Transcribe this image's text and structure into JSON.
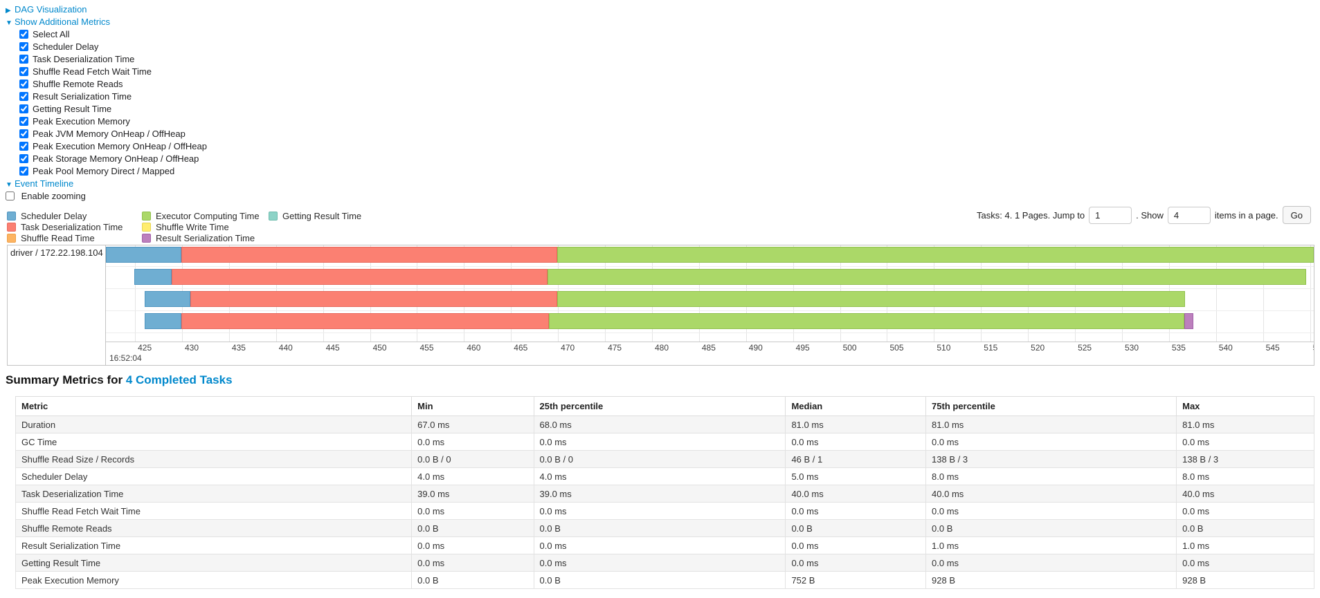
{
  "theme": {
    "link_color": "#0088cc"
  },
  "toggles": {
    "dag": {
      "label": "DAG Visualization",
      "arrow": "▶"
    },
    "metrics": {
      "label": "Show Additional Metrics",
      "arrow": "▼"
    },
    "metric_checkboxes": [
      {
        "label": "Select All",
        "checked": true
      },
      {
        "label": "Scheduler Delay",
        "checked": true
      },
      {
        "label": "Task Deserialization Time",
        "checked": true
      },
      {
        "label": "Shuffle Read Fetch Wait Time",
        "checked": true
      },
      {
        "label": "Shuffle Remote Reads",
        "checked": true
      },
      {
        "label": "Result Serialization Time",
        "checked": true
      },
      {
        "label": "Getting Result Time",
        "checked": true
      },
      {
        "label": "Peak Execution Memory",
        "checked": true
      },
      {
        "label": "Peak JVM Memory OnHeap / OffHeap",
        "checked": true
      },
      {
        "label": "Peak Execution Memory OnHeap / OffHeap",
        "checked": true
      },
      {
        "label": "Peak Storage Memory OnHeap / OffHeap",
        "checked": true
      },
      {
        "label": "Peak Pool Memory Direct / Mapped",
        "checked": true
      }
    ],
    "event_timeline": {
      "label": "Event Timeline",
      "arrow": "▼"
    },
    "enable_zooming": {
      "label": "Enable zooming",
      "checked": false
    }
  },
  "legend": {
    "items": [
      {
        "key": "scheduler_delay",
        "label": "Scheduler Delay"
      },
      {
        "key": "task_deserialization",
        "label": "Task Deserialization Time"
      },
      {
        "key": "shuffle_read",
        "label": "Shuffle Read Time"
      },
      {
        "key": "executor_computing",
        "label": "Executor Computing Time"
      },
      {
        "key": "shuffle_write",
        "label": "Shuffle Write Time"
      },
      {
        "key": "result_serialization",
        "label": "Result Serialization Time"
      },
      {
        "key": "getting_result",
        "label": "Getting Result Time"
      }
    ]
  },
  "pagination": {
    "prefix": "Tasks: 4. 1 Pages. Jump to",
    "jump_value": "1",
    "mid": ". Show",
    "show_value": "4",
    "suffix": "items in a page.",
    "go_label": "Go"
  },
  "chart_data": {
    "type": "timeline",
    "group_label": "driver / 172.22.198.104",
    "axis": {
      "start": 421.9,
      "end": 550.4,
      "tick_start": 425,
      "tick_step": 5,
      "tick_end": 550,
      "major_label": "16:52:04",
      "unit": "ms within 16:52:04"
    },
    "colors": {
      "scheduler_delay": {
        "fill": "#6FAED2",
        "border": "#4E94C0"
      },
      "task_deserialization": {
        "fill": "#FB8072",
        "border": "#E8685C"
      },
      "shuffle_read": {
        "fill": "#FDB462",
        "border": "#ED9F47"
      },
      "executor_computing": {
        "fill": "#ABD868",
        "border": "#91C14E"
      },
      "shuffle_write": {
        "fill": "#FFED6F",
        "border": "#E6D452"
      },
      "result_serialization": {
        "fill": "#BC80BD",
        "border": "#A15FA8"
      },
      "getting_result": {
        "fill": "#8DD3C7",
        "border": "#6FBCAE"
      }
    },
    "tasks": [
      {
        "segments": [
          [
            "scheduler_delay",
            421.9,
            429.9
          ],
          [
            "task_deserialization",
            429.9,
            469.9
          ],
          [
            "executor_computing",
            469.9,
            550.4
          ]
        ]
      },
      {
        "segments": [
          [
            "scheduler_delay",
            424.9,
            428.9
          ],
          [
            "task_deserialization",
            428.9,
            468.9
          ],
          [
            "executor_computing",
            468.9,
            549.6
          ]
        ]
      },
      {
        "segments": [
          [
            "scheduler_delay",
            426.0,
            430.9
          ],
          [
            "task_deserialization",
            430.9,
            469.9
          ],
          [
            "executor_computing",
            469.9,
            536.7
          ]
        ]
      },
      {
        "segments": [
          [
            "scheduler_delay",
            426.0,
            429.9
          ],
          [
            "task_deserialization",
            429.9,
            469.0
          ],
          [
            "executor_computing",
            469.0,
            536.6
          ],
          [
            "result_serialization",
            536.6,
            537.6
          ]
        ]
      }
    ]
  },
  "summary": {
    "heading_prefix": "Summary Metrics for ",
    "heading_link": "4 Completed Tasks",
    "table": {
      "columns": [
        "Metric",
        "Min",
        "25th percentile",
        "Median",
        "75th percentile",
        "Max"
      ],
      "rows": [
        [
          "Duration",
          "67.0 ms",
          "68.0 ms",
          "81.0 ms",
          "81.0 ms",
          "81.0 ms"
        ],
        [
          "GC Time",
          "0.0 ms",
          "0.0 ms",
          "0.0 ms",
          "0.0 ms",
          "0.0 ms"
        ],
        [
          "Shuffle Read Size / Records",
          "0.0 B / 0",
          "0.0 B / 0",
          "46 B / 1",
          "138 B / 3",
          "138 B / 3"
        ],
        [
          "Scheduler Delay",
          "4.0 ms",
          "4.0 ms",
          "5.0 ms",
          "8.0 ms",
          "8.0 ms"
        ],
        [
          "Task Deserialization Time",
          "39.0 ms",
          "39.0 ms",
          "40.0 ms",
          "40.0 ms",
          "40.0 ms"
        ],
        [
          "Shuffle Read Fetch Wait Time",
          "0.0 ms",
          "0.0 ms",
          "0.0 ms",
          "0.0 ms",
          "0.0 ms"
        ],
        [
          "Shuffle Remote Reads",
          "0.0 B",
          "0.0 B",
          "0.0 B",
          "0.0 B",
          "0.0 B"
        ],
        [
          "Result Serialization Time",
          "0.0 ms",
          "0.0 ms",
          "0.0 ms",
          "1.0 ms",
          "1.0 ms"
        ],
        [
          "Getting Result Time",
          "0.0 ms",
          "0.0 ms",
          "0.0 ms",
          "0.0 ms",
          "0.0 ms"
        ],
        [
          "Peak Execution Memory",
          "0.0 B",
          "0.0 B",
          "752 B",
          "928 B",
          "928 B"
        ]
      ]
    }
  }
}
